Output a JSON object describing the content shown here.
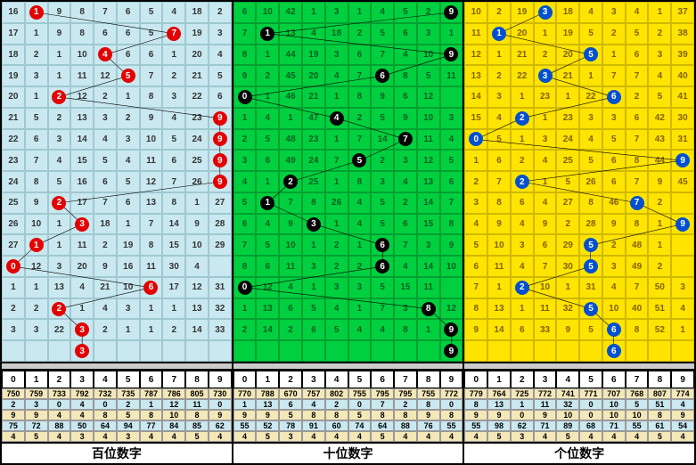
{
  "rows": 17,
  "cols": 10,
  "panels": [
    {
      "label": "百位数字",
      "bg": "#c9e8f0",
      "ball_color": "#e30000",
      "grid_color": "#a0c8d0",
      "text_color": "#333",
      "first_col": [
        16,
        17,
        18,
        19,
        20,
        21,
        22,
        23,
        24,
        25,
        26,
        27,
        0,
        1,
        2,
        3,
        null
      ],
      "highlights": [
        1,
        7,
        4,
        5,
        2,
        9,
        9,
        9,
        9,
        2,
        3,
        1,
        0,
        6,
        2,
        3,
        3
      ],
      "extra_row": true,
      "numbers": [
        [
          9,
          8,
          7,
          6,
          5,
          4,
          18,
          2
        ],
        [
          1,
          9,
          8,
          6,
          6,
          5,
          19,
          3
        ],
        [
          2,
          1,
          10,
          6,
          6,
          1,
          20,
          4
        ],
        [
          3,
          1,
          11,
          12,
          7,
          2,
          21,
          5
        ],
        [
          1,
          12,
          2,
          1,
          8,
          3,
          22,
          6
        ],
        [
          5,
          2,
          13,
          3,
          2,
          9,
          4,
          23
        ],
        [
          6,
          3,
          14,
          4,
          3,
          10,
          5,
          24
        ],
        [
          7,
          4,
          15,
          5,
          4,
          11,
          6,
          25
        ],
        [
          8,
          5,
          16,
          6,
          5,
          12,
          7,
          26
        ],
        [
          9,
          17,
          7,
          6,
          13,
          8,
          1,
          27
        ],
        [
          10,
          1,
          18,
          1,
          7,
          14,
          9,
          28
        ],
        [
          1,
          11,
          2,
          19,
          8,
          15,
          10,
          29
        ],
        [
          12,
          3,
          20,
          9,
          16,
          11,
          30,
          4
        ],
        [
          1,
          13,
          4,
          21,
          10,
          17,
          12,
          31
        ],
        [
          2,
          1,
          4,
          3,
          1,
          1,
          13,
          32
        ],
        [
          3,
          22,
          2,
          1,
          1,
          2,
          14,
          33
        ],
        [
          null,
          null,
          null,
          null,
          null,
          null,
          null,
          null
        ]
      ],
      "stats": [
        {
          "bg": "#f4e8b8",
          "vals": [
            750,
            759,
            733,
            792,
            732,
            735,
            787,
            786,
            805,
            730
          ]
        },
        {
          "bg": "#c9e8f0",
          "vals": [
            2,
            3,
            0,
            4,
            0,
            2,
            1,
            12,
            11,
            0
          ]
        },
        {
          "bg": "#f4e8b8",
          "vals": [
            9,
            9,
            4,
            4,
            8,
            5,
            8,
            10,
            8,
            9
          ]
        },
        {
          "bg": "#c9e8f0",
          "vals": [
            75,
            72,
            88,
            50,
            64,
            94,
            77,
            84,
            85,
            62
          ]
        },
        {
          "bg": "#f4e8b8",
          "vals": [
            4,
            5,
            4,
            3,
            4,
            3,
            4,
            4,
            5,
            4
          ]
        }
      ]
    },
    {
      "label": "十位数字",
      "bg": "#00d040",
      "ball_color": "#000000",
      "grid_color": "#00a030",
      "text_color": "#006020",
      "first_col": [
        6,
        7,
        8,
        9,
        0,
        1,
        2,
        3,
        4,
        5,
        6,
        7,
        8,
        0,
        1,
        2,
        null
      ],
      "highlights": [
        9,
        1,
        9,
        6,
        0,
        4,
        7,
        5,
        2,
        1,
        3,
        6,
        6,
        0,
        8,
        9,
        9
      ],
      "extra_row": true,
      "numbers": [
        [
          10,
          42,
          1,
          3,
          1,
          4,
          5,
          2
        ],
        [
          13,
          4,
          18,
          2,
          5,
          6,
          3,
          1
        ],
        [
          1,
          44,
          19,
          3,
          6,
          7,
          4,
          10
        ],
        [
          2,
          45,
          20,
          4,
          7,
          8,
          5,
          11
        ],
        [
          1,
          46,
          21,
          1,
          8,
          9,
          6,
          12
        ],
        [
          4,
          1,
          47,
          2,
          5,
          9,
          10,
          3
        ],
        [
          5,
          48,
          23,
          1,
          7,
          14,
          11,
          4
        ],
        [
          6,
          49,
          24,
          7,
          2,
          3,
          12,
          5
        ],
        [
          1,
          25,
          1,
          8,
          3,
          4,
          13,
          6
        ],
        [
          7,
          8,
          26,
          4,
          5,
          2,
          14,
          7
        ],
        [
          4,
          9,
          1,
          4,
          5,
          6,
          15,
          8
        ],
        [
          5,
          10,
          1,
          2,
          1,
          7,
          3,
          9
        ],
        [
          6,
          11,
          3,
          2,
          2,
          4,
          14,
          10
        ],
        [
          12,
          4,
          1,
          3,
          3,
          5,
          15,
          11
        ],
        [
          13,
          6,
          5,
          4,
          1,
          7,
          3,
          12
        ],
        [
          14,
          2,
          6,
          5,
          4,
          4,
          8,
          1
        ],
        [
          null,
          null,
          null,
          null,
          null,
          null,
          null,
          null
        ]
      ],
      "stats": [
        {
          "bg": "#f4e8b8",
          "vals": [
            770,
            788,
            670,
            757,
            802,
            755,
            795,
            795,
            755,
            772
          ]
        },
        {
          "bg": "#c9e8f0",
          "vals": [
            1,
            13,
            6,
            4,
            2,
            0,
            7,
            2,
            8,
            0
          ]
        },
        {
          "bg": "#f4e8b8",
          "vals": [
            9,
            9,
            5,
            8,
            8,
            5,
            8,
            8,
            9,
            8
          ]
        },
        {
          "bg": "#c9e8f0",
          "vals": [
            55,
            52,
            78,
            91,
            60,
            74,
            64,
            88,
            76,
            55
          ]
        },
        {
          "bg": "#f4e8b8",
          "vals": [
            4,
            5,
            3,
            4,
            4,
            4,
            5,
            4,
            4,
            4
          ]
        }
      ]
    },
    {
      "label": "个位数字",
      "bg": "#ffe400",
      "ball_color": "#0050d0",
      "grid_color": "#d0b800",
      "text_color": "#806000",
      "first_col": [
        10,
        11,
        12,
        13,
        14,
        15,
        0,
        1,
        2,
        3,
        4,
        5,
        6,
        7,
        8,
        9,
        null
      ],
      "highlights": [
        3,
        1,
        5,
        3,
        6,
        2,
        0,
        9,
        2,
        7,
        9,
        5,
        5,
        2,
        5,
        6,
        6
      ],
      "extra_row": true,
      "numbers": [
        [
          2,
          19,
          18,
          4,
          3,
          4,
          1,
          37,
          25
        ],
        [
          20,
          1,
          19,
          5,
          2,
          5,
          2,
          38,
          26
        ],
        [
          1,
          21,
          2,
          20,
          1,
          6,
          3,
          39,
          27
        ],
        [
          2,
          22,
          21,
          1,
          7,
          7,
          4,
          40,
          28
        ],
        [
          3,
          1,
          23,
          1,
          22,
          2,
          5,
          41,
          29
        ],
        [
          4,
          1,
          23,
          3,
          3,
          6,
          42,
          30
        ],
        [
          5,
          1,
          3,
          24,
          4,
          5,
          7,
          43,
          31
        ],
        [
          6,
          2,
          4,
          25,
          5,
          6,
          8,
          44,
          1
        ],
        [
          7,
          1,
          5,
          26,
          6,
          7,
          9,
          45,
          1
        ],
        [
          8,
          6,
          4,
          27,
          8,
          46,
          2
        ],
        [
          9,
          4,
          9,
          2,
          28,
          9,
          8,
          1,
          47
        ],
        [
          10,
          3,
          6,
          29,
          2,
          48,
          1
        ],
        [
          11,
          4,
          7,
          30,
          3,
          49,
          2
        ],
        [
          1,
          10,
          1,
          31,
          4,
          7,
          50,
          3
        ],
        [
          13,
          1,
          11,
          32,
          10,
          40,
          51,
          4
        ],
        [
          14,
          6,
          33,
          9,
          5,
          8,
          52,
          1
        ],
        [
          null,
          null,
          null,
          null,
          null,
          null,
          null,
          null
        ]
      ],
      "stats": [
        {
          "bg": "#f4e8b8",
          "vals": [
            779,
            764,
            725,
            772,
            741,
            771,
            707,
            768,
            807,
            774
          ]
        },
        {
          "bg": "#c9e8f0",
          "vals": [
            8,
            13,
            1,
            11,
            32,
            0,
            10,
            5,
            51,
            4
          ]
        },
        {
          "bg": "#f4e8b8",
          "vals": [
            9,
            9,
            0,
            9,
            10,
            0,
            10,
            10,
            8,
            9
          ]
        },
        {
          "bg": "#c9e8f0",
          "vals": [
            55,
            98,
            62,
            71,
            89,
            68,
            71,
            55,
            61,
            54
          ]
        },
        {
          "bg": "#f4e8b8",
          "vals": [
            4,
            5,
            3,
            4,
            5,
            4,
            4,
            4,
            5,
            4
          ]
        }
      ]
    }
  ],
  "header_digits": [
    0,
    1,
    2,
    3,
    4,
    5,
    6,
    7,
    8,
    9
  ]
}
